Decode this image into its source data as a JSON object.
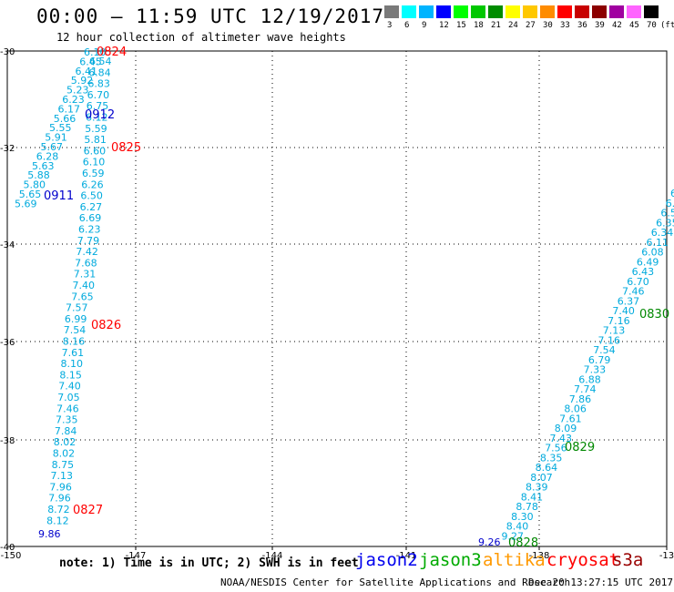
{
  "header": {
    "title": "00:00 – 11:59 UTC 12/19/2017",
    "subtitle": "12 hour collection of altimeter wave heights"
  },
  "legend": {
    "unit": "(ft)",
    "items": [
      {
        "label": "3",
        "color": "#7a7a7a"
      },
      {
        "label": "6",
        "color": "#00ffff"
      },
      {
        "label": "9",
        "color": "#00b4ff"
      },
      {
        "label": "12",
        "color": "#0000ff"
      },
      {
        "label": "15",
        "color": "#00ff00"
      },
      {
        "label": "18",
        "color": "#00c800"
      },
      {
        "label": "21",
        "color": "#008c00"
      },
      {
        "label": "24",
        "color": "#ffff00"
      },
      {
        "label": "27",
        "color": "#ffc800"
      },
      {
        "label": "30",
        "color": "#ff8c00"
      },
      {
        "label": "33",
        "color": "#ff0000"
      },
      {
        "label": "36",
        "color": "#c80000"
      },
      {
        "label": "39",
        "color": "#8c0000"
      },
      {
        "label": "42",
        "color": "#a000a0"
      },
      {
        "label": "45",
        "color": "#ff64ff"
      },
      {
        "label": "70",
        "color": "#000000"
      }
    ]
  },
  "map": {
    "lon_ticks": [
      "-150",
      "-147",
      "-144",
      "-141",
      "-138",
      "-13"
    ],
    "lat_ticks": [
      "-30",
      "-32",
      "-34",
      "-36",
      "-38",
      "-40"
    ],
    "value_color": "#00aadd",
    "left_track_a": [
      "6.10",
      "6.45",
      "6.41",
      "5.92",
      "5.23",
      "6.23",
      "6.17",
      "5.66",
      "5.55",
      "5.91",
      "5.67",
      "6.28",
      "5.63",
      "5.88",
      "5.80",
      "5.65",
      "5.69"
    ],
    "left_track_a_label": "0911",
    "left_track_b": [
      "6.54",
      "6.84",
      "6.83",
      "6.70",
      "6.75",
      "6.12",
      "5.59",
      "5.81",
      "6.60",
      "6.10",
      "6.59",
      "6.26",
      "6.50",
      "6.27",
      "6.69",
      "6.23",
      "7.79",
      "7.42",
      "7.68",
      "7.31",
      "7.40",
      "7.65",
      "7.57",
      "6.99",
      "7.54",
      "8.16",
      "7.61",
      "8.10",
      "8.15",
      "7.40",
      "7.05",
      "7.46",
      "7.35",
      "7.84",
      "8.02",
      "8.02",
      "8.75",
      "7.13",
      "7.96",
      "7.96",
      "8.72",
      "8.12"
    ],
    "left_track_b_end": "9.86",
    "right_track": [
      "6",
      "6.3",
      "6.56",
      "6.35",
      "6.34",
      "6.11",
      "6.08",
      "6.49",
      "6.43",
      "6.70",
      "7.46",
      "6.37",
      "7.40",
      "7.16",
      "7.13",
      "7.16",
      "7.54",
      "6.79",
      "7.33",
      "6.88",
      "7.74",
      "7.86",
      "8.06",
      "7.61",
      "8.09",
      "7.43",
      "7.56",
      "8.35",
      "8.64",
      "8.07",
      "8.39",
      "8.41",
      "8.78",
      "8.30",
      "8.40",
      "9.27"
    ],
    "right_track_end": "9.26",
    "time_labels": [
      {
        "text": "0824",
        "color": "#ff0000"
      },
      {
        "text": "0825",
        "color": "#ff0000"
      },
      {
        "text": "0826",
        "color": "#ff0000"
      },
      {
        "text": "0827",
        "color": "#ff0000"
      },
      {
        "text": "0912",
        "color": "#0000cc"
      },
      {
        "text": "0911",
        "color": "#0000cc"
      },
      {
        "text": "0828",
        "color": "#008800"
      },
      {
        "text": "0829",
        "color": "#008800"
      },
      {
        "text": "0830",
        "color": "#008800"
      }
    ]
  },
  "footer": {
    "note": "note:  1) Time is in UTC;  2) SWH is in feet",
    "satellites": [
      {
        "name": "jason2",
        "color": "#0000ee"
      },
      {
        "name": "jason3",
        "color": "#00aa00"
      },
      {
        "name": "altika",
        "color": "#ff9900"
      },
      {
        "name": "cryosat",
        "color": "#ff0000"
      },
      {
        "name": "s3a",
        "color": "#990000"
      }
    ],
    "credit": "NOAA/NESDIS Center for Satellite Applications and Research",
    "timestamp": "Dec 20 13:27:15 UTC 2017"
  }
}
